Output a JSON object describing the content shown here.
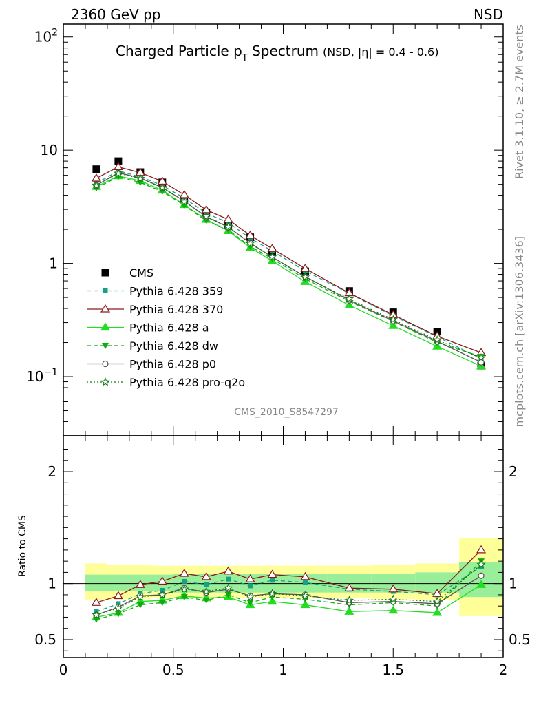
{
  "header": {
    "energy": "2360 GeV pp",
    "process": "NSD"
  },
  "side": {
    "rivet": "Rivet 3.1.10, ≥ 2.7M events",
    "mcplots": "mcplots.cern.ch [arXiv:1306.3436]"
  },
  "chart_data": {
    "type": "line",
    "title": {
      "main_a": "Charged Particle p",
      "main_sub": "T",
      "main_b": " Spectrum",
      "qualifier": "(NSD, |η| = 0.4 - 0.6)"
    },
    "analysis": "CMS_2010_S8547297",
    "xlim": [
      0,
      2
    ],
    "x_ticks": [
      "0",
      "0.5",
      "1",
      "1.5",
      "2"
    ],
    "top": {
      "yscale": "log",
      "ylim": [
        0.03,
        130
      ],
      "y_ticks": [
        {
          "v": 0.1,
          "base": "10",
          "exp": "−1"
        },
        {
          "v": 1,
          "base": "1",
          "exp": ""
        },
        {
          "v": 10,
          "base": "10",
          "exp": ""
        },
        {
          "v": 100,
          "base": "10",
          "exp": "2"
        }
      ]
    },
    "bottom": {
      "ylabel": "Ratio to CMS",
      "ylim": [
        0.34,
        2.32
      ],
      "y_ticks": [
        "0.5",
        "1",
        "2"
      ],
      "y_tick_values": [
        0.5,
        1,
        2
      ]
    },
    "bins": [
      [
        0.1,
        0.2
      ],
      [
        0.2,
        0.3
      ],
      [
        0.3,
        0.4
      ],
      [
        0.4,
        0.5
      ],
      [
        0.5,
        0.6
      ],
      [
        0.6,
        0.7
      ],
      [
        0.7,
        0.8
      ],
      [
        0.8,
        0.9
      ],
      [
        0.9,
        1.0
      ],
      [
        1.0,
        1.2
      ],
      [
        1.2,
        1.4
      ],
      [
        1.4,
        1.6
      ],
      [
        1.6,
        1.8
      ],
      [
        1.8,
        2.0
      ]
    ],
    "x": [
      0.15,
      0.25,
      0.35,
      0.45,
      0.55,
      0.65,
      0.75,
      0.85,
      0.95,
      1.1,
      1.3,
      1.5,
      1.7,
      1.9
    ],
    "data": {
      "name": "CMS",
      "values": [
        6.8,
        8.0,
        6.4,
        5.2,
        3.7,
        2.8,
        2.2,
        1.7,
        1.25,
        0.85,
        0.57,
        0.37,
        0.25,
        0.125
      ],
      "band_inner": [
        [
          0.93,
          1.08
        ],
        [
          0.93,
          1.08
        ],
        [
          0.93,
          1.08
        ],
        [
          0.93,
          1.08
        ],
        [
          0.92,
          1.09
        ],
        [
          0.92,
          1.09
        ],
        [
          0.92,
          1.09
        ],
        [
          0.92,
          1.09
        ],
        [
          0.92,
          1.09
        ],
        [
          0.92,
          1.09
        ],
        [
          0.92,
          1.09
        ],
        [
          0.92,
          1.09
        ],
        [
          0.92,
          1.1
        ],
        [
          0.88,
          1.19
        ]
      ],
      "band_outer": [
        [
          0.85,
          1.18
        ],
        [
          0.86,
          1.17
        ],
        [
          0.86,
          1.17
        ],
        [
          0.87,
          1.16
        ],
        [
          0.87,
          1.16
        ],
        [
          0.87,
          1.16
        ],
        [
          0.87,
          1.16
        ],
        [
          0.87,
          1.16
        ],
        [
          0.87,
          1.16
        ],
        [
          0.87,
          1.16
        ],
        [
          0.87,
          1.16
        ],
        [
          0.86,
          1.17
        ],
        [
          0.85,
          1.18
        ],
        [
          0.71,
          1.41
        ]
      ]
    },
    "series": [
      {
        "name": "Pythia 6.428 359",
        "color": "#16a085",
        "dash": "6,4",
        "marker": "square",
        "ratio": [
          0.75,
          0.82,
          0.91,
          0.94,
          1.02,
          0.99,
          1.04,
          0.98,
          1.03,
          1.01,
          0.95,
          0.93,
          0.9,
          1.15
        ]
      },
      {
        "name": "Pythia 6.428 370",
        "color": "#8b1a1a",
        "dash": "",
        "marker": "triangle-open",
        "ratio": [
          0.83,
          0.89,
          0.99,
          1.02,
          1.09,
          1.06,
          1.11,
          1.04,
          1.08,
          1.06,
          0.96,
          0.95,
          0.91,
          1.3
        ]
      },
      {
        "name": "Pythia 6.428 a",
        "color": "#22dd22",
        "dash": "",
        "marker": "triangle",
        "ratio": [
          0.7,
          0.74,
          0.84,
          0.85,
          0.89,
          0.87,
          0.88,
          0.81,
          0.84,
          0.81,
          0.75,
          0.76,
          0.74,
          0.99
        ]
      },
      {
        "name": "Pythia 6.428 dw",
        "color": "#11aa11",
        "dash": "6,4",
        "marker": "triangle-down",
        "ratio": [
          0.68,
          0.73,
          0.81,
          0.83,
          0.88,
          0.85,
          0.9,
          0.83,
          0.88,
          0.86,
          0.81,
          0.83,
          0.8,
          1.2
        ]
      },
      {
        "name": "Pythia 6.428 p0",
        "color": "#555555",
        "dash": "",
        "marker": "circle-open",
        "ratio": [
          0.72,
          0.79,
          0.89,
          0.9,
          0.96,
          0.92,
          0.95,
          0.89,
          0.91,
          0.9,
          0.83,
          0.84,
          0.82,
          1.07
        ]
      },
      {
        "name": "Pythia 6.428 pro-q2o",
        "color": "#137a13",
        "dash": "2,3",
        "marker": "star-open",
        "ratio": [
          0.72,
          0.78,
          0.88,
          0.9,
          0.95,
          0.93,
          0.96,
          0.88,
          0.91,
          0.89,
          0.85,
          0.86,
          0.84,
          1.17
        ]
      }
    ]
  }
}
